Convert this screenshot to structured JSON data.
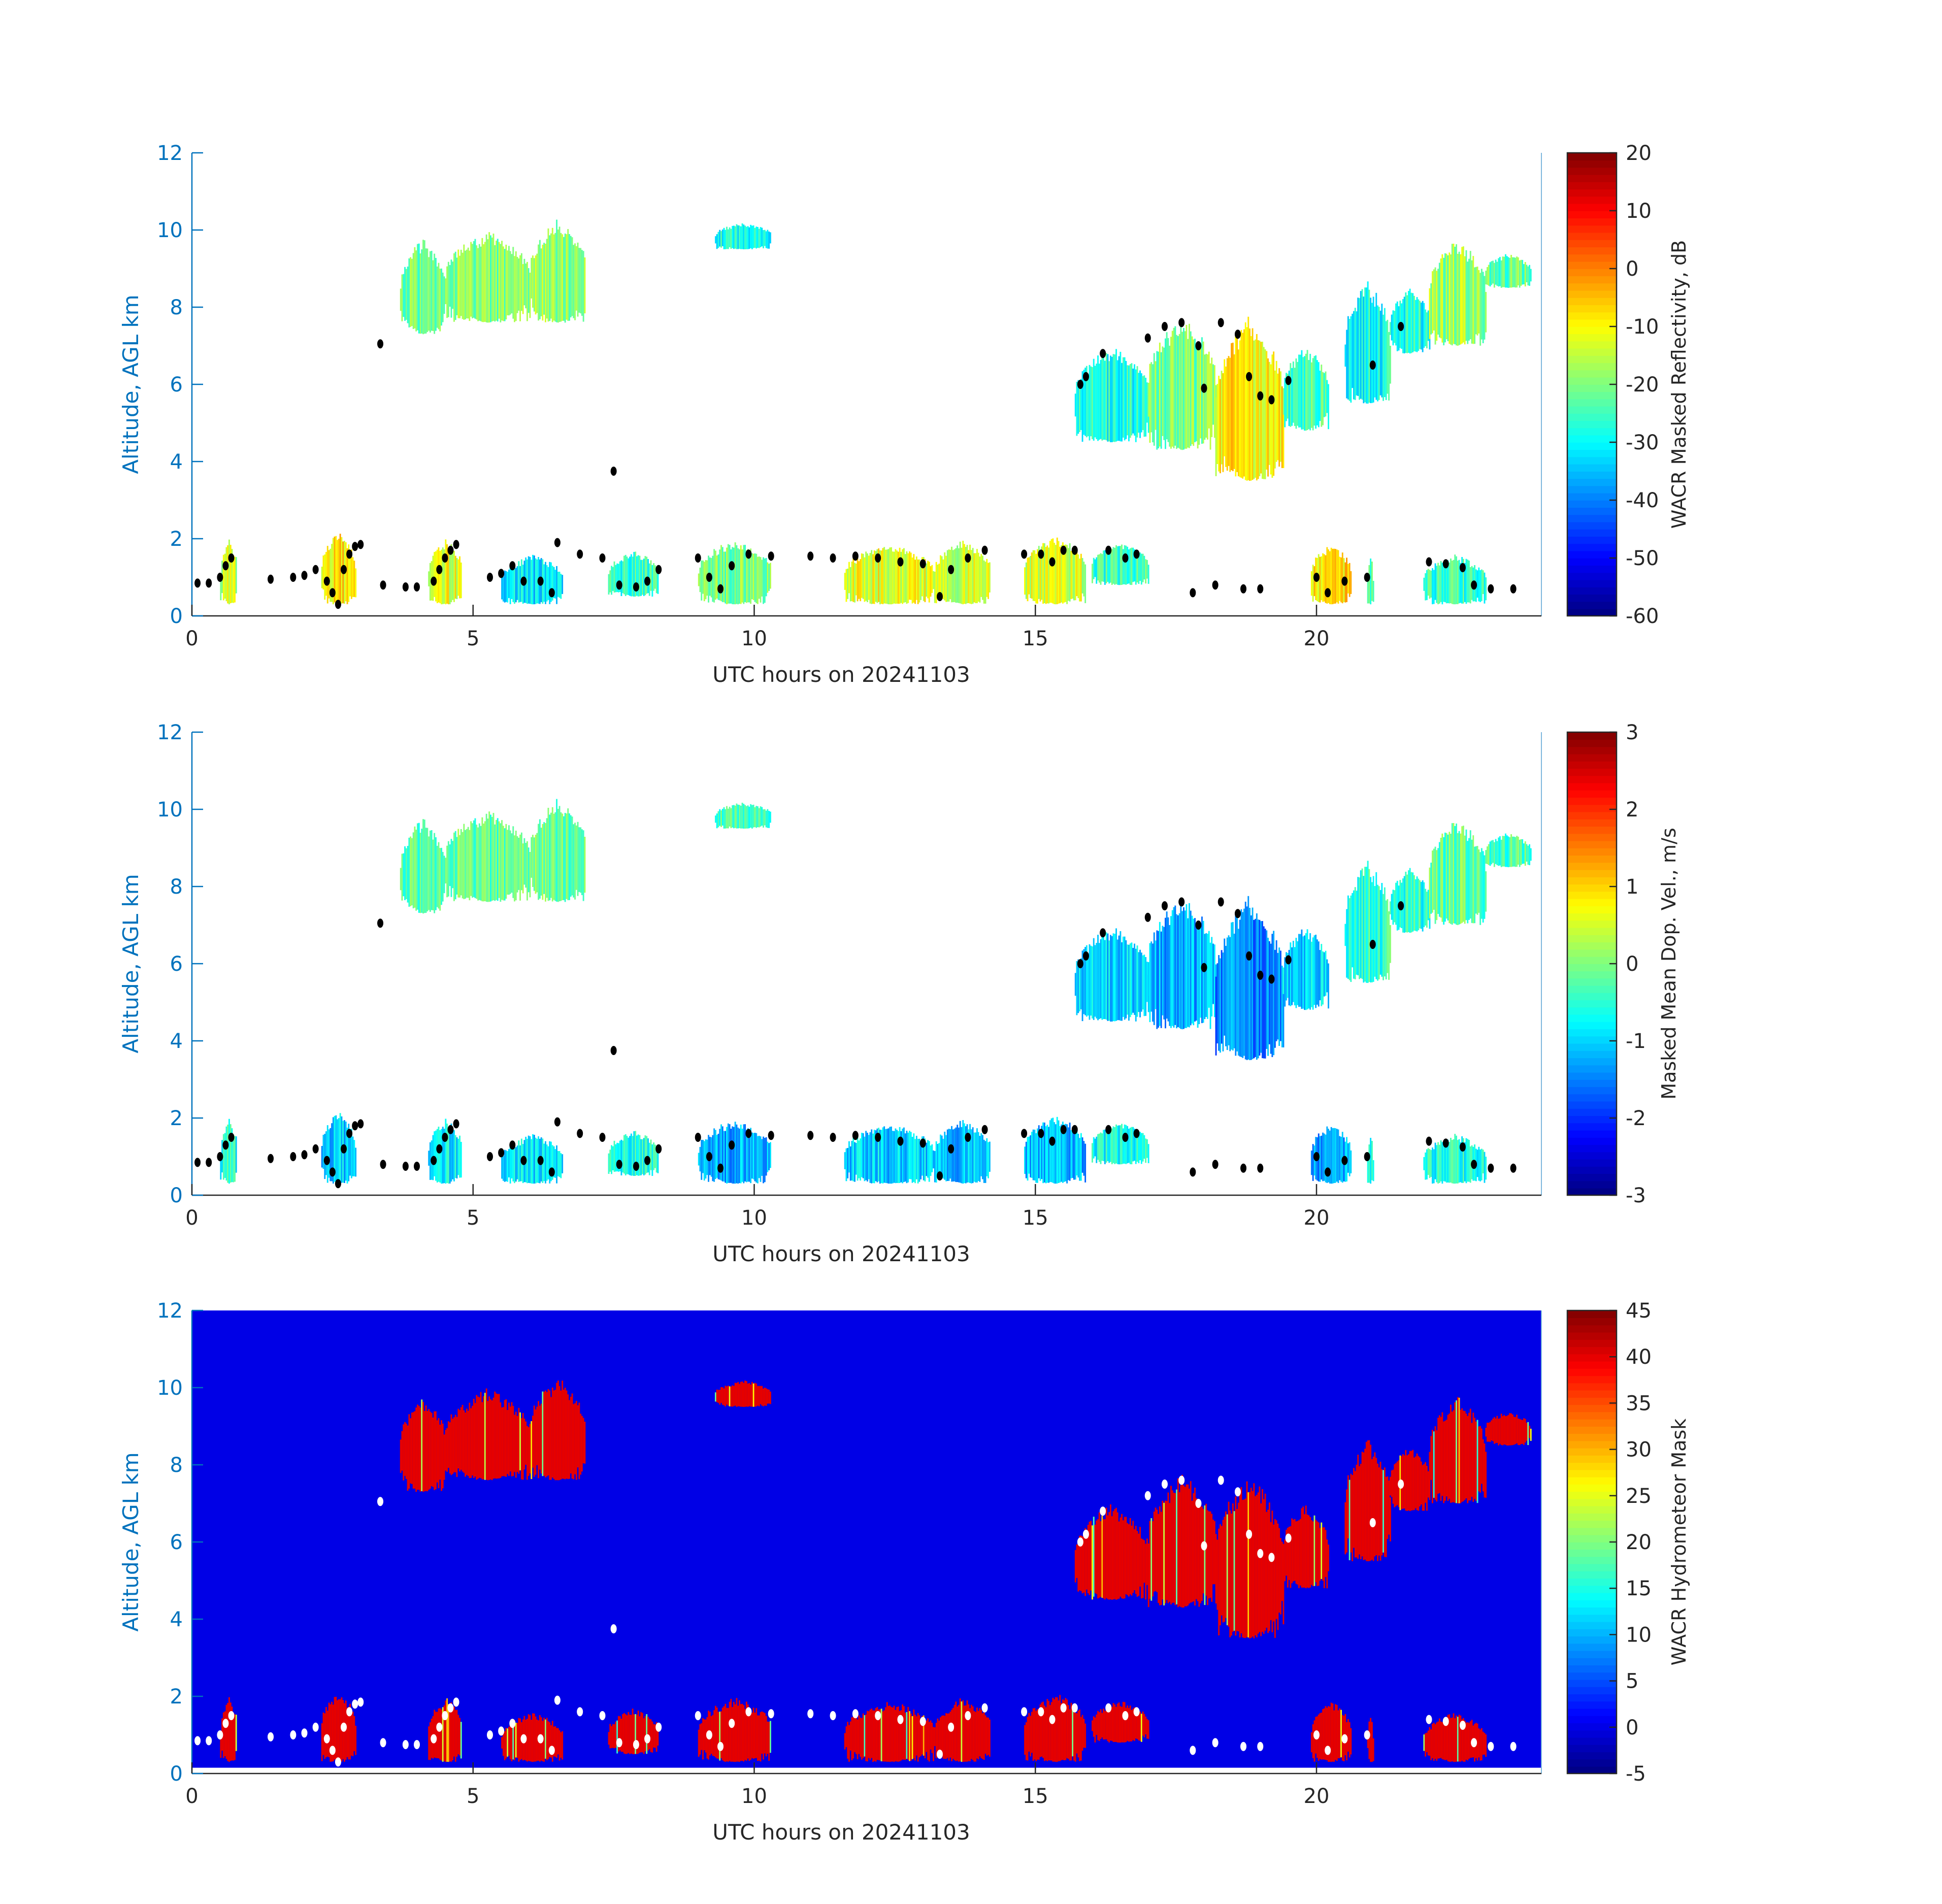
{
  "chart_data": [
    {
      "type": "heatmap",
      "xlabel": "UTC hours on 20241103",
      "ylabel": "Altitude, AGL km",
      "xlim": [
        0,
        24
      ],
      "ylim": [
        0,
        12
      ],
      "xticks": [
        "0",
        "5",
        "10",
        "15",
        "20"
      ],
      "yticks": [
        "0",
        "2",
        "4",
        "6",
        "8",
        "10",
        "12"
      ],
      "colorbar": {
        "label": "WACR Masked Reflectivity, dB",
        "range": [
          -60,
          20
        ],
        "ticks": [
          "-60",
          "-50",
          "-40",
          "-30",
          "-20",
          "-10",
          "0",
          "10",
          "20"
        ],
        "colormap": "jet"
      },
      "field": "reflectivity",
      "point_color": "#000000",
      "background": "#ffffff"
    },
    {
      "type": "heatmap",
      "xlabel": "UTC hours on 20241103",
      "ylabel": "Altitude, AGL km",
      "xlim": [
        0,
        24
      ],
      "ylim": [
        0,
        12
      ],
      "xticks": [
        "0",
        "5",
        "10",
        "15",
        "20"
      ],
      "yticks": [
        "0",
        "2",
        "4",
        "6",
        "8",
        "10",
        "12"
      ],
      "colorbar": {
        "label": "Masked Mean Dop. Vel., m/s",
        "range": [
          -3,
          3
        ],
        "ticks": [
          "-3",
          "-2",
          "-1",
          "0",
          "1",
          "2",
          "3"
        ],
        "colormap": "jet"
      },
      "field": "velocity",
      "point_color": "#000000",
      "background": "#ffffff"
    },
    {
      "type": "heatmap",
      "xlabel": "UTC hours on 20241103",
      "ylabel": "Altitude, AGL km",
      "xlim": [
        0,
        24
      ],
      "ylim": [
        0,
        12
      ],
      "xticks": [
        "0",
        "5",
        "10",
        "15",
        "20"
      ],
      "yticks": [
        "0",
        "2",
        "4",
        "6",
        "8",
        "10",
        "12"
      ],
      "colorbar": {
        "label": "WACR Hydrometeor Mask",
        "range": [
          -5,
          45
        ],
        "ticks": [
          "-5",
          "0",
          "5",
          "10",
          "15",
          "20",
          "25",
          "30",
          "35",
          "40",
          "45"
        ],
        "colormap": "jet"
      },
      "field": "mask",
      "point_color": "#ffffff",
      "background_value": 0,
      "background_min_altitude_km": 0.15
    }
  ],
  "echo_regions": {
    "columns": [
      "t_start_h",
      "t_end_h",
      "z_bottom_km",
      "z_top_km",
      "reflectivity_dB",
      "velocity_ms",
      "mask"
    ],
    "rows": [
      [
        0.5,
        0.8,
        0.3,
        2.0,
        -15,
        -0.6,
        40
      ],
      [
        2.3,
        2.9,
        0.3,
        2.2,
        -8,
        -1.0,
        40
      ],
      [
        4.2,
        4.8,
        0.3,
        2.0,
        -12,
        -0.8,
        40
      ],
      [
        5.5,
        6.6,
        0.3,
        1.6,
        -32,
        -0.9,
        40
      ],
      [
        7.4,
        8.3,
        0.5,
        1.7,
        -26,
        -0.6,
        40
      ],
      [
        9.0,
        10.3,
        0.3,
        2.0,
        -20,
        -1.2,
        40
      ],
      [
        11.6,
        13.2,
        0.3,
        1.9,
        -12,
        -1.0,
        40
      ],
      [
        13.2,
        14.2,
        0.3,
        2.0,
        -14,
        -1.1,
        40
      ],
      [
        14.8,
        15.9,
        0.3,
        2.1,
        -14,
        -1.2,
        40
      ],
      [
        16.0,
        17.0,
        0.8,
        1.9,
        -26,
        -0.7,
        40
      ],
      [
        19.9,
        20.6,
        0.3,
        1.9,
        -8,
        -1.3,
        40
      ],
      [
        20.9,
        21.0,
        0.3,
        1.6,
        -26,
        -0.8,
        40
      ],
      [
        21.9,
        23.0,
        0.3,
        1.6,
        -26,
        -0.6,
        40
      ],
      [
        3.7,
        4.5,
        7.3,
        9.8,
        -22,
        -0.3,
        40
      ],
      [
        4.5,
        6.0,
        7.6,
        10.0,
        -20,
        -0.2,
        40
      ],
      [
        6.0,
        7.0,
        7.6,
        10.3,
        -18,
        -0.1,
        40
      ],
      [
        9.3,
        10.3,
        9.5,
        10.2,
        -28,
        -0.3,
        40
      ],
      [
        15.7,
        17.0,
        4.5,
        7.0,
        -28,
        -1.0,
        40
      ],
      [
        17.0,
        18.2,
        4.3,
        7.8,
        -20,
        -1.2,
        40
      ],
      [
        18.2,
        19.4,
        3.5,
        7.8,
        -10,
        -1.5,
        40
      ],
      [
        19.4,
        20.2,
        4.8,
        7.0,
        -25,
        -1.0,
        40
      ],
      [
        20.5,
        21.3,
        5.5,
        8.7,
        -28,
        -0.4,
        40
      ],
      [
        21.3,
        22.0,
        6.8,
        8.5,
        -28,
        -0.5,
        40
      ],
      [
        22.0,
        23.0,
        7.0,
        9.8,
        -18,
        -0.2,
        40
      ],
      [
        23.0,
        23.8,
        8.5,
        9.4,
        -22,
        -0.3,
        40
      ]
    ]
  },
  "cloud_base_points": [
    [
      0.1,
      0.85
    ],
    [
      0.3,
      0.85
    ],
    [
      0.5,
      1.0
    ],
    [
      0.6,
      1.3
    ],
    [
      0.7,
      1.5
    ],
    [
      1.4,
      0.95
    ],
    [
      1.8,
      1.0
    ],
    [
      2.0,
      1.05
    ],
    [
      2.2,
      1.2
    ],
    [
      2.4,
      0.9
    ],
    [
      2.5,
      0.6
    ],
    [
      2.6,
      0.3
    ],
    [
      2.7,
      1.2
    ],
    [
      2.8,
      1.6
    ],
    [
      2.9,
      1.8
    ],
    [
      3.0,
      1.85
    ],
    [
      3.35,
      7.05
    ],
    [
      3.4,
      0.8
    ],
    [
      3.8,
      0.75
    ],
    [
      4.0,
      0.75
    ],
    [
      4.3,
      0.9
    ],
    [
      4.4,
      1.2
    ],
    [
      4.5,
      1.5
    ],
    [
      4.6,
      1.7
    ],
    [
      4.7,
      1.85
    ],
    [
      5.3,
      1.0
    ],
    [
      5.5,
      1.1
    ],
    [
      5.7,
      1.3
    ],
    [
      5.9,
      0.9
    ],
    [
      6.2,
      0.9
    ],
    [
      6.4,
      0.6
    ],
    [
      6.5,
      1.9
    ],
    [
      6.9,
      1.6
    ],
    [
      7.3,
      1.5
    ],
    [
      7.5,
      3.75
    ],
    [
      7.6,
      0.8
    ],
    [
      7.9,
      0.75
    ],
    [
      8.1,
      0.9
    ],
    [
      8.3,
      1.2
    ],
    [
      9.0,
      1.5
    ],
    [
      9.2,
      1.0
    ],
    [
      9.4,
      0.7
    ],
    [
      9.6,
      1.3
    ],
    [
      9.9,
      1.6
    ],
    [
      10.3,
      1.55
    ],
    [
      11.0,
      1.55
    ],
    [
      11.4,
      1.5
    ],
    [
      11.8,
      1.55
    ],
    [
      12.2,
      1.5
    ],
    [
      12.6,
      1.4
    ],
    [
      13.0,
      1.35
    ],
    [
      13.3,
      0.5
    ],
    [
      13.5,
      1.2
    ],
    [
      13.8,
      1.5
    ],
    [
      14.1,
      1.7
    ],
    [
      14.8,
      1.6
    ],
    [
      15.1,
      1.6
    ],
    [
      15.3,
      1.4
    ],
    [
      15.5,
      1.7
    ],
    [
      15.7,
      1.7
    ],
    [
      15.8,
      6.0
    ],
    [
      15.9,
      6.2
    ],
    [
      16.2,
      6.8
    ],
    [
      16.3,
      1.7
    ],
    [
      16.6,
      1.5
    ],
    [
      16.8,
      1.6
    ],
    [
      17.0,
      7.2
    ],
    [
      17.3,
      7.5
    ],
    [
      17.6,
      7.6
    ],
    [
      17.9,
      7.0
    ],
    [
      18.0,
      5.9
    ],
    [
      18.3,
      7.6
    ],
    [
      18.6,
      7.3
    ],
    [
      18.8,
      6.2
    ],
    [
      19.0,
      5.7
    ],
    [
      19.2,
      5.6
    ],
    [
      19.5,
      6.1
    ],
    [
      17.8,
      0.6
    ],
    [
      18.2,
      0.8
    ],
    [
      18.7,
      0.7
    ],
    [
      19.0,
      0.7
    ],
    [
      20.0,
      1.0
    ],
    [
      20.2,
      0.6
    ],
    [
      20.5,
      0.9
    ],
    [
      20.9,
      1.0
    ],
    [
      21.0,
      6.5
    ],
    [
      21.5,
      7.5
    ],
    [
      22.0,
      1.4
    ],
    [
      22.3,
      1.35
    ],
    [
      22.6,
      1.25
    ],
    [
      22.8,
      0.8
    ],
    [
      23.1,
      0.7
    ],
    [
      23.5,
      0.7
    ]
  ]
}
